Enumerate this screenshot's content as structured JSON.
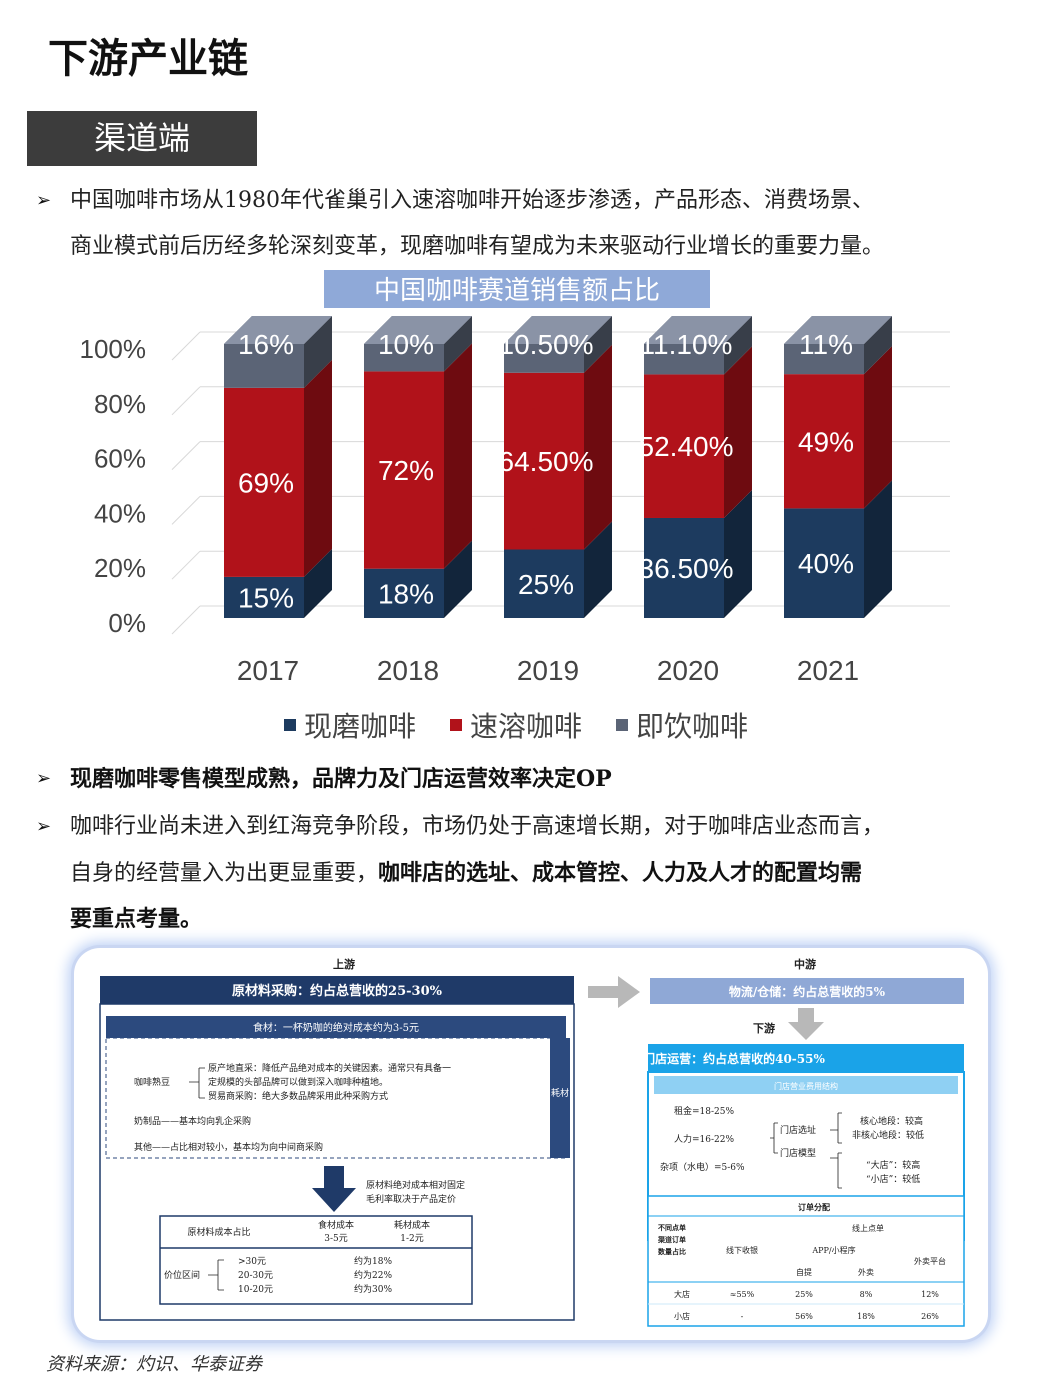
{
  "title": "下游产业链",
  "section_tag": "渠道端",
  "bullets": {
    "b1_line1": "中国咖啡市场从1980年代雀巢引入速溶咖啡开始逐步渗透，产品形态、消费场景、",
    "b1_line2": "商业模式前后历经多轮深刻变革，现磨咖啡有望成为未来驱动行业增长的重要力量。",
    "b2": "现磨咖啡零售模型成熟，品牌力及门店运营效率决定OP",
    "b3_line1": "咖啡行业尚未进入到红海竞争阶段，市场仍处于高速增长期，对于咖啡店业态而言，",
    "b3_line2_plain": "自身的经营量入为出更显重要，",
    "b3_line2_bold": "咖啡店的选址、成本管控、人力及人才的配置均需",
    "b3_line3_bold": "要重点考量。"
  },
  "chart_data": {
    "type": "bar",
    "stacked": true,
    "title": "中国咖啡赛道销售额占比",
    "categories": [
      "2017",
      "2018",
      "2019",
      "2020",
      "2021"
    ],
    "yticks": [
      "0%",
      "20%",
      "40%",
      "60%",
      "80%",
      "100%"
    ],
    "ylim": [
      0,
      100
    ],
    "series": [
      {
        "name": "现磨咖啡",
        "color": "#1d3b5f",
        "values": [
          15,
          18,
          25,
          36.5,
          40
        ],
        "labels": [
          "15%",
          "18%",
          "25%",
          "36.50%",
          "40%"
        ]
      },
      {
        "name": "速溶咖啡",
        "color": "#b1121a",
        "values": [
          69,
          72,
          64.5,
          52.4,
          49
        ],
        "labels": [
          "69%",
          "72%",
          "64.50%",
          "52.40%",
          "49%"
        ]
      },
      {
        "name": "即饮咖啡",
        "color": "#5b6476",
        "values": [
          16,
          10,
          10.5,
          11.1,
          11
        ],
        "labels": [
          "16%",
          "10%",
          "10.50%",
          "11.10%",
          "11%"
        ]
      }
    ],
    "legend_position": "bottom",
    "grid": true
  },
  "upstream": {
    "heading": "上游",
    "banner": "原材料采购：约占总营收的25-30%",
    "sub_banner": "食材：一杯奶咖的绝对成本约为3-5元",
    "coffee_label": "咖啡熟豆",
    "coffee_line1": "原产地直采：降低产品绝对成本的关键因素。通常只有具备一",
    "coffee_line2": "定规模的头部品牌可以做到深入咖啡种植地。",
    "coffee_line3": "贸易商采购：绝大多数品牌采用此种采购方式",
    "dairy": "奶制品——基本均向乳企采购",
    "other": "其他——占比相对较小，基本均为向中间商采购",
    "side_tag": "耗材",
    "note_line1": "原材料绝对成本相对固定",
    "note_line2": "毛利率取决于产品定价",
    "table_header": [
      "原材料成本占比",
      "食材成本\n3-5元",
      "耗材成本\n1-2元"
    ],
    "range_label": "价位区间",
    "ranges": [
      ">30元",
      "20-30元",
      "10-20元"
    ],
    "ratios": [
      "约为18%",
      "约为22%",
      "约为30%"
    ]
  },
  "midstream": {
    "heading": "中游",
    "banner": "物流/仓储：约占总营收的5%",
    "downstream_heading": "下游",
    "store_banner": "门店运营：约占总营收的40-55%",
    "store_sub": "门店营业费用结构",
    "costs": [
      "租金=18-25%",
      "人力=16-22%",
      "杂项（水电）=5-6%"
    ],
    "mid_labels": [
      "门店选址",
      "门店模型"
    ],
    "loc_core": "核心地段：较高",
    "loc_noncore": "非核心地段：较低",
    "big_store": "“大店”：较高",
    "small_store": "“小店”：较低",
    "order_title": "订单分配",
    "order_rowlabel": "不同点单渠道订单数量占比",
    "order_offline": "线下收银",
    "order_online": "线上点单",
    "order_app": "APP/小程序",
    "order_pickup": "自提",
    "order_delivery": "外卖",
    "order_platform": "外卖平台",
    "rows": [
      {
        "name": "大店",
        "offline": "≈55%",
        "pickup": "25%",
        "delivery": "8%",
        "platform": "12%"
      },
      {
        "name": "小店",
        "offline": "-",
        "pickup": "56%",
        "delivery": "18%",
        "platform": "26%"
      }
    ]
  },
  "source": "资料来源：灼识、华泰证券"
}
